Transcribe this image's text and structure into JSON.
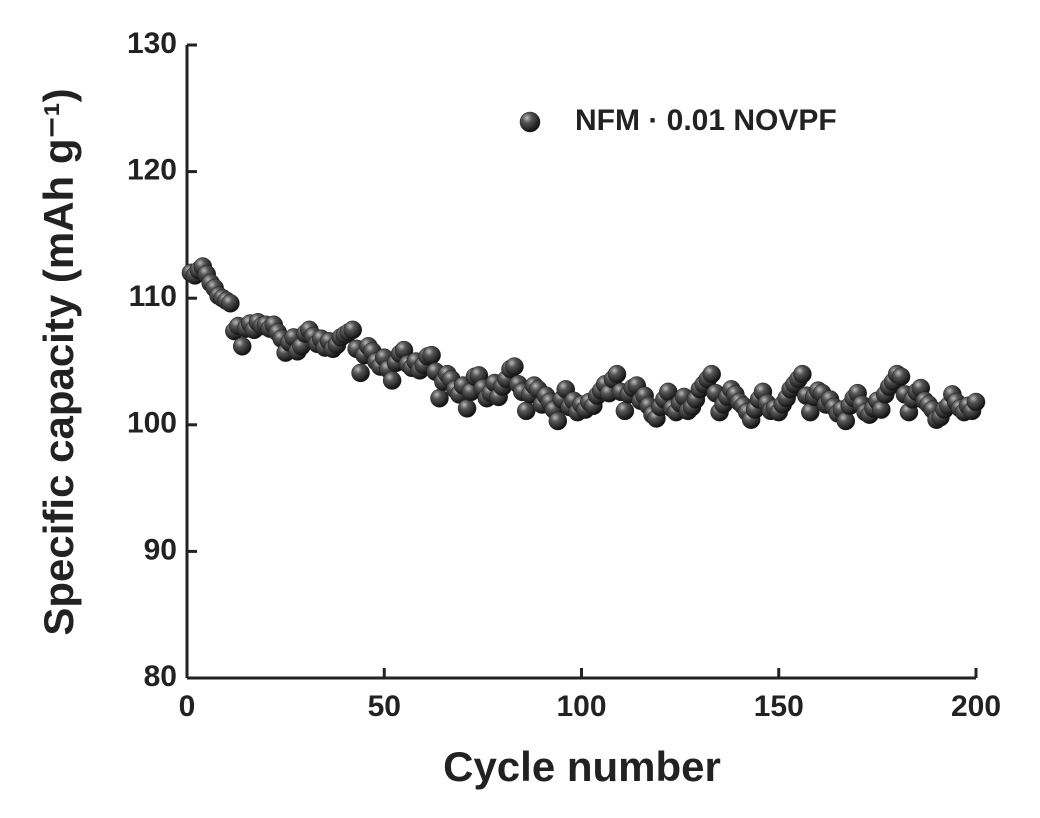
{
  "chart_data": {
    "type": "scatter",
    "xlabel": "Cycle number",
    "ylabel": "Specific capacity (mAh g⁻¹)",
    "xlim": [
      0,
      200
    ],
    "xticks": [
      0,
      50,
      100,
      150,
      200
    ],
    "ylim": [
      80,
      130
    ],
    "yticks": [
      80,
      90,
      100,
      110,
      120,
      130
    ],
    "legend": "upper right",
    "x": [
      1,
      2,
      3,
      4,
      5,
      6,
      7,
      8,
      9,
      10,
      11,
      12,
      13,
      14,
      15,
      16,
      17,
      18,
      19,
      20,
      21,
      22,
      23,
      24,
      25,
      26,
      27,
      28,
      29,
      30,
      31,
      32,
      33,
      34,
      35,
      36,
      37,
      38,
      39,
      40,
      41,
      42,
      43,
      44,
      45,
      46,
      47,
      48,
      49,
      50,
      51,
      52,
      53,
      54,
      55,
      56,
      57,
      58,
      59,
      60,
      61,
      62,
      63,
      64,
      65,
      66,
      67,
      68,
      69,
      70,
      71,
      72,
      73,
      74,
      75,
      76,
      77,
      78,
      79,
      80,
      81,
      82,
      83,
      84,
      85,
      86,
      87,
      88,
      89,
      90,
      91,
      92,
      93,
      94,
      95,
      96,
      97,
      98,
      99,
      100,
      101,
      102,
      103,
      104,
      105,
      106,
      107,
      108,
      109,
      110,
      111,
      112,
      113,
      114,
      115,
      116,
      117,
      118,
      119,
      120,
      121,
      122,
      123,
      124,
      125,
      126,
      127,
      128,
      129,
      130,
      131,
      132,
      133,
      134,
      135,
      136,
      137,
      138,
      139,
      140,
      141,
      142,
      143,
      144,
      145,
      146,
      147,
      148,
      149,
      150,
      151,
      152,
      153,
      154,
      155,
      156,
      157,
      158,
      159,
      160,
      161,
      162,
      163,
      164,
      165,
      166,
      167,
      168,
      169,
      170,
      171,
      172,
      173,
      174,
      175,
      176,
      177,
      178,
      179,
      180,
      181,
      182,
      183,
      184,
      185,
      186,
      187,
      188,
      189,
      190,
      191,
      192,
      193,
      194,
      195,
      196,
      197,
      198,
      199,
      200
    ],
    "series": [
      {
        "name": "NFM · 0.01 NOVPF",
        "color": "#222222",
        "values": [
          112.0,
          111.8,
          112.2,
          112.5,
          111.9,
          111.2,
          110.8,
          110.2,
          110.0,
          109.8,
          109.6,
          107.4,
          107.8,
          106.2,
          107.6,
          108.0,
          107.5,
          108.1,
          107.8,
          107.9,
          107.6,
          107.9,
          107.3,
          106.8,
          105.7,
          106.5,
          106.9,
          105.8,
          106.2,
          107.2,
          107.5,
          107.0,
          106.4,
          106.8,
          106.1,
          106.6,
          106.0,
          106.3,
          106.9,
          107.1,
          107.3,
          107.5,
          106.0,
          104.1,
          105.5,
          106.2,
          105.8,
          105.0,
          104.6,
          105.3,
          104.4,
          103.5,
          104.9,
          105.6,
          105.9,
          104.8,
          104.5,
          105.0,
          104.3,
          104.7,
          105.4,
          105.5,
          104.2,
          102.1,
          103.4,
          104.0,
          103.6,
          102.8,
          102.4,
          103.1,
          101.3,
          102.6,
          103.8,
          103.9,
          102.9,
          102.1,
          102.5,
          103.3,
          102.2,
          103.0,
          103.6,
          104.4,
          104.6,
          103.2,
          102.6,
          101.1,
          102.4,
          103.1,
          102.8,
          101.6,
          102.3,
          101.8,
          101.2,
          100.3,
          102.0,
          102.8,
          101.4,
          101.9,
          101.0,
          101.6,
          101.2,
          101.8,
          101.5,
          102.3,
          102.7,
          103.2,
          102.5,
          103.6,
          104.0,
          102.6,
          101.1,
          102.4,
          102.9,
          103.1,
          101.9,
          102.3,
          101.5,
          100.8,
          100.5,
          101.4,
          102.0,
          102.6,
          101.3,
          101.0,
          101.7,
          102.2,
          101.1,
          101.4,
          102.0,
          102.8,
          103.2,
          103.6,
          104.0,
          102.5,
          101.0,
          101.6,
          102.2,
          102.8,
          102.4,
          101.8,
          101.5,
          101.0,
          100.4,
          101.2,
          102.0,
          102.6,
          101.7,
          101.1,
          101.3,
          101.0,
          101.6,
          102.1,
          102.8,
          103.2,
          103.6,
          104.0,
          102.3,
          101.0,
          102.2,
          102.7,
          102.5,
          101.6,
          102.0,
          101.4,
          100.9,
          101.2,
          100.3,
          101.5,
          102.1,
          102.5,
          101.6,
          101.0,
          100.8,
          101.3,
          101.9,
          101.2,
          102.4,
          103.0,
          103.4,
          104.0,
          103.8,
          102.4,
          101.0,
          102.0,
          102.6,
          102.9,
          101.9,
          101.6,
          101.2,
          100.4,
          100.6,
          101.2,
          101.5,
          102.4,
          101.8,
          101.3,
          101.0,
          101.5,
          101.1,
          101.8
        ]
      }
    ]
  }
}
